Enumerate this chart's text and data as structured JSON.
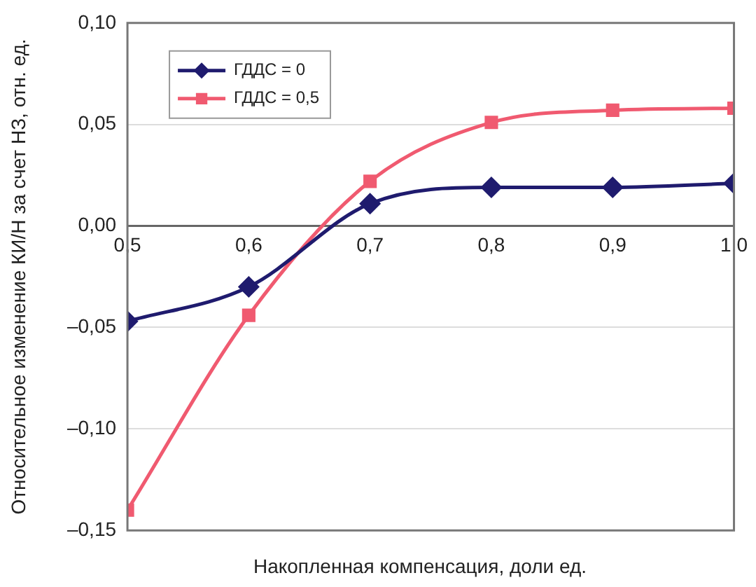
{
  "chart_data": {
    "type": "line",
    "xlabel": "Накопленная компенсация, доли ед.",
    "ylabel": "Относительное изменение КИ/Н за счет НЗ, отн. ед.",
    "x": [
      0.5,
      0.6,
      0.7,
      0.8,
      0.9,
      1.0
    ],
    "series": [
      {
        "name": "ГДДС = 0",
        "color": "#1f1b6e",
        "marker": "diamond",
        "values": [
          -0.047,
          -0.03,
          0.011,
          0.019,
          0.019,
          0.021
        ]
      },
      {
        "name": "ГДДС = 0,5",
        "color": "#f05a70",
        "marker": "square",
        "values": [
          -0.14,
          -0.044,
          0.022,
          0.051,
          0.057,
          0.058
        ]
      }
    ],
    "xlim": [
      0.5,
      1.0
    ],
    "xticks": [
      {
        "value": 0.5,
        "label": "0,5"
      },
      {
        "value": 0.6,
        "label": "0,6"
      },
      {
        "value": 0.7,
        "label": "0,7"
      },
      {
        "value": 0.8,
        "label": "0,8"
      },
      {
        "value": 0.9,
        "label": "0,9"
      },
      {
        "value": 1.0,
        "label": "1,0"
      }
    ],
    "ylim": [
      -0.15,
      0.1
    ],
    "yticks": [
      {
        "value": -0.15,
        "label": "–0,15"
      },
      {
        "value": -0.1,
        "label": "–0,10"
      },
      {
        "value": -0.05,
        "label": "–0,05"
      },
      {
        "value": 0,
        "label": "0,00"
      },
      {
        "value": 0.05,
        "label": "0,05"
      },
      {
        "value": 0.1,
        "label": "0,10"
      }
    ],
    "grid": "y",
    "legend": "top left",
    "line_style": "solid"
  }
}
